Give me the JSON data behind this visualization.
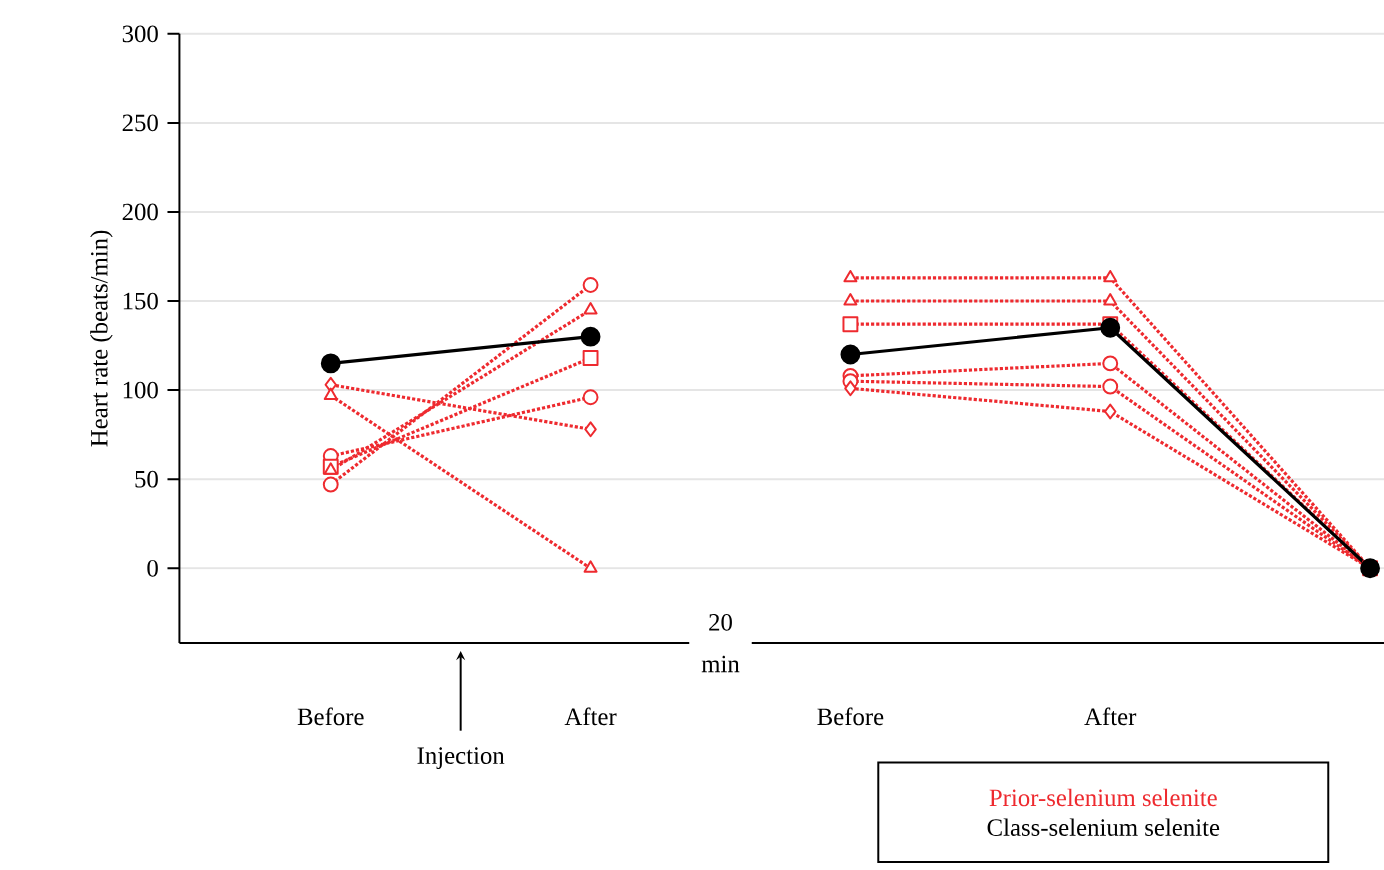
{
  "chart_data": {
    "type": "line",
    "ylabel": "Heart rate (beats/min)",
    "categories": [
      "Before",
      "After",
      "Before",
      "After",
      null
    ],
    "ylim": [
      -42,
      300
    ],
    "yticks": [
      0,
      50,
      100,
      150,
      200,
      250,
      300
    ],
    "grid": "y",
    "legend": "bottom right",
    "annotations": [
      "Injection",
      "20 min"
    ],
    "series": [
      {
        "name": "Prior-selenium selenite",
        "color": "#ee2a2f",
        "line_style": "dotted",
        "marker": "circle",
        "values": [
          63,
          96,
          null,
          null,
          null
        ]
      },
      {
        "color": "#ee2a2f",
        "line_style": "dotted",
        "marker": "square",
        "values": [
          57,
          118,
          null,
          null,
          null
        ]
      },
      {
        "color": "#ee2a2f",
        "line_style": "dotted",
        "marker": "circle",
        "values": [
          47,
          159,
          null,
          null,
          null
        ]
      },
      {
        "color": "#ee2a2f",
        "line_style": "dotted",
        "marker": "triangle",
        "values": [
          55,
          145,
          null,
          null,
          null
        ]
      },
      {
        "color": "#ee2a2f",
        "line_style": "dotted",
        "marker": "diamond",
        "values": [
          103,
          78,
          null,
          null,
          null
        ]
      },
      {
        "color": "#ee2a2f",
        "line_style": "dotted",
        "marker": "triangle",
        "values": [
          97,
          0,
          null,
          null,
          null
        ]
      },
      {
        "color": "#ee2a2f",
        "line_style": "dotted",
        "marker": "triangle",
        "values": [
          null,
          null,
          163,
          163,
          0
        ]
      },
      {
        "color": "#ee2a2f",
        "line_style": "dotted",
        "marker": "triangle",
        "values": [
          null,
          null,
          150,
          150,
          0
        ]
      },
      {
        "color": "#ee2a2f",
        "line_style": "dotted",
        "marker": "square",
        "values": [
          null,
          null,
          137,
          137,
          0
        ]
      },
      {
        "color": "#ee2a2f",
        "line_style": "dotted",
        "marker": "circle",
        "values": [
          null,
          null,
          108,
          115,
          0
        ]
      },
      {
        "color": "#ee2a2f",
        "line_style": "dotted",
        "marker": "circle",
        "values": [
          null,
          null,
          105,
          102,
          0
        ]
      },
      {
        "color": "#ee2a2f",
        "line_style": "dotted",
        "marker": "diamond",
        "values": [
          null,
          null,
          101,
          88,
          0
        ]
      },
      {
        "name": "Class-selenium selenite",
        "color": "#000000",
        "line_style": "solid",
        "marker": "circle",
        "values": [
          115,
          130,
          null,
          null,
          null
        ]
      },
      {
        "color": "#000000",
        "line_style": "solid",
        "marker": "circle",
        "values": [
          null,
          null,
          120,
          135,
          0
        ]
      }
    ]
  }
}
